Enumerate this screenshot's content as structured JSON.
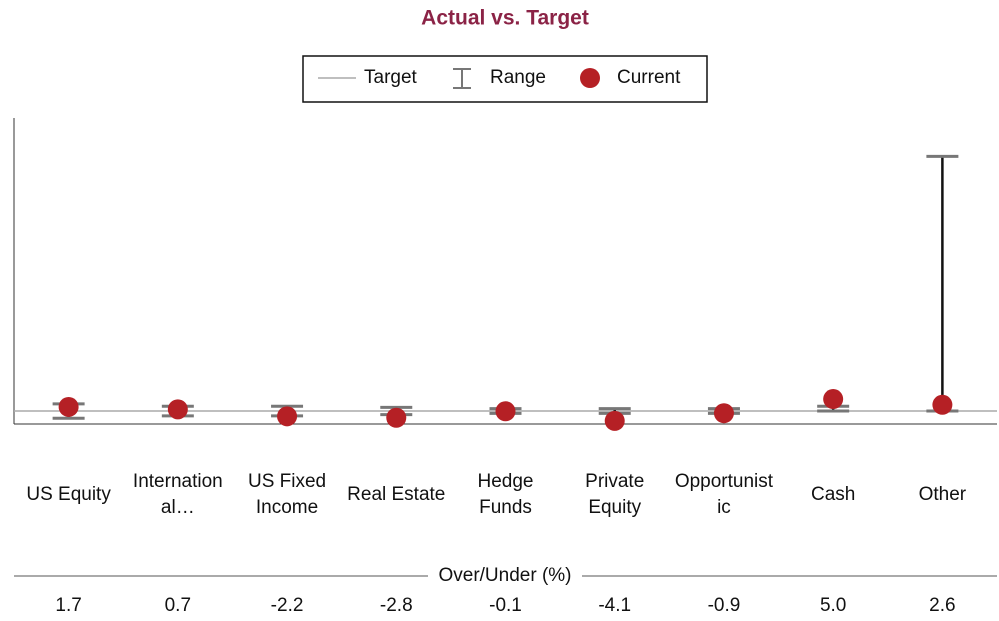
{
  "chart_data": {
    "type": "deviation",
    "title": "Actual vs. Target",
    "legend": {
      "target": "Target",
      "range": "Range",
      "current": "Current"
    },
    "categories": [
      "US Equity",
      "Internation\nal…",
      "US Fixed\nIncome",
      "Real Estate",
      "Hedge\nFunds",
      "Private\nEquity",
      "Opportunist\nic",
      "Cash",
      "Other"
    ],
    "target": 0,
    "values": [
      1.7,
      0.7,
      -2.2,
      -2.8,
      -0.1,
      -4.1,
      -0.9,
      5.0,
      2.6
    ],
    "value_labels": [
      "1.7",
      "0.7",
      "-2.2",
      "-2.8",
      "-0.1",
      "-4.1",
      "-0.9",
      "5.0",
      "2.6"
    ],
    "range_low": [
      -3,
      -2,
      -2,
      -1.5,
      -1,
      -1,
      -1,
      0,
      0
    ],
    "range_high": [
      3,
      2,
      2,
      1.5,
      1,
      1,
      1,
      2,
      106
    ],
    "table_label": "Over/Under (%)",
    "ylim": [
      -5.4,
      122
    ],
    "title_color": "#8b2346",
    "current_color": "#b52025",
    "target_color": "#aaaaaa",
    "range_color": "#777777"
  }
}
